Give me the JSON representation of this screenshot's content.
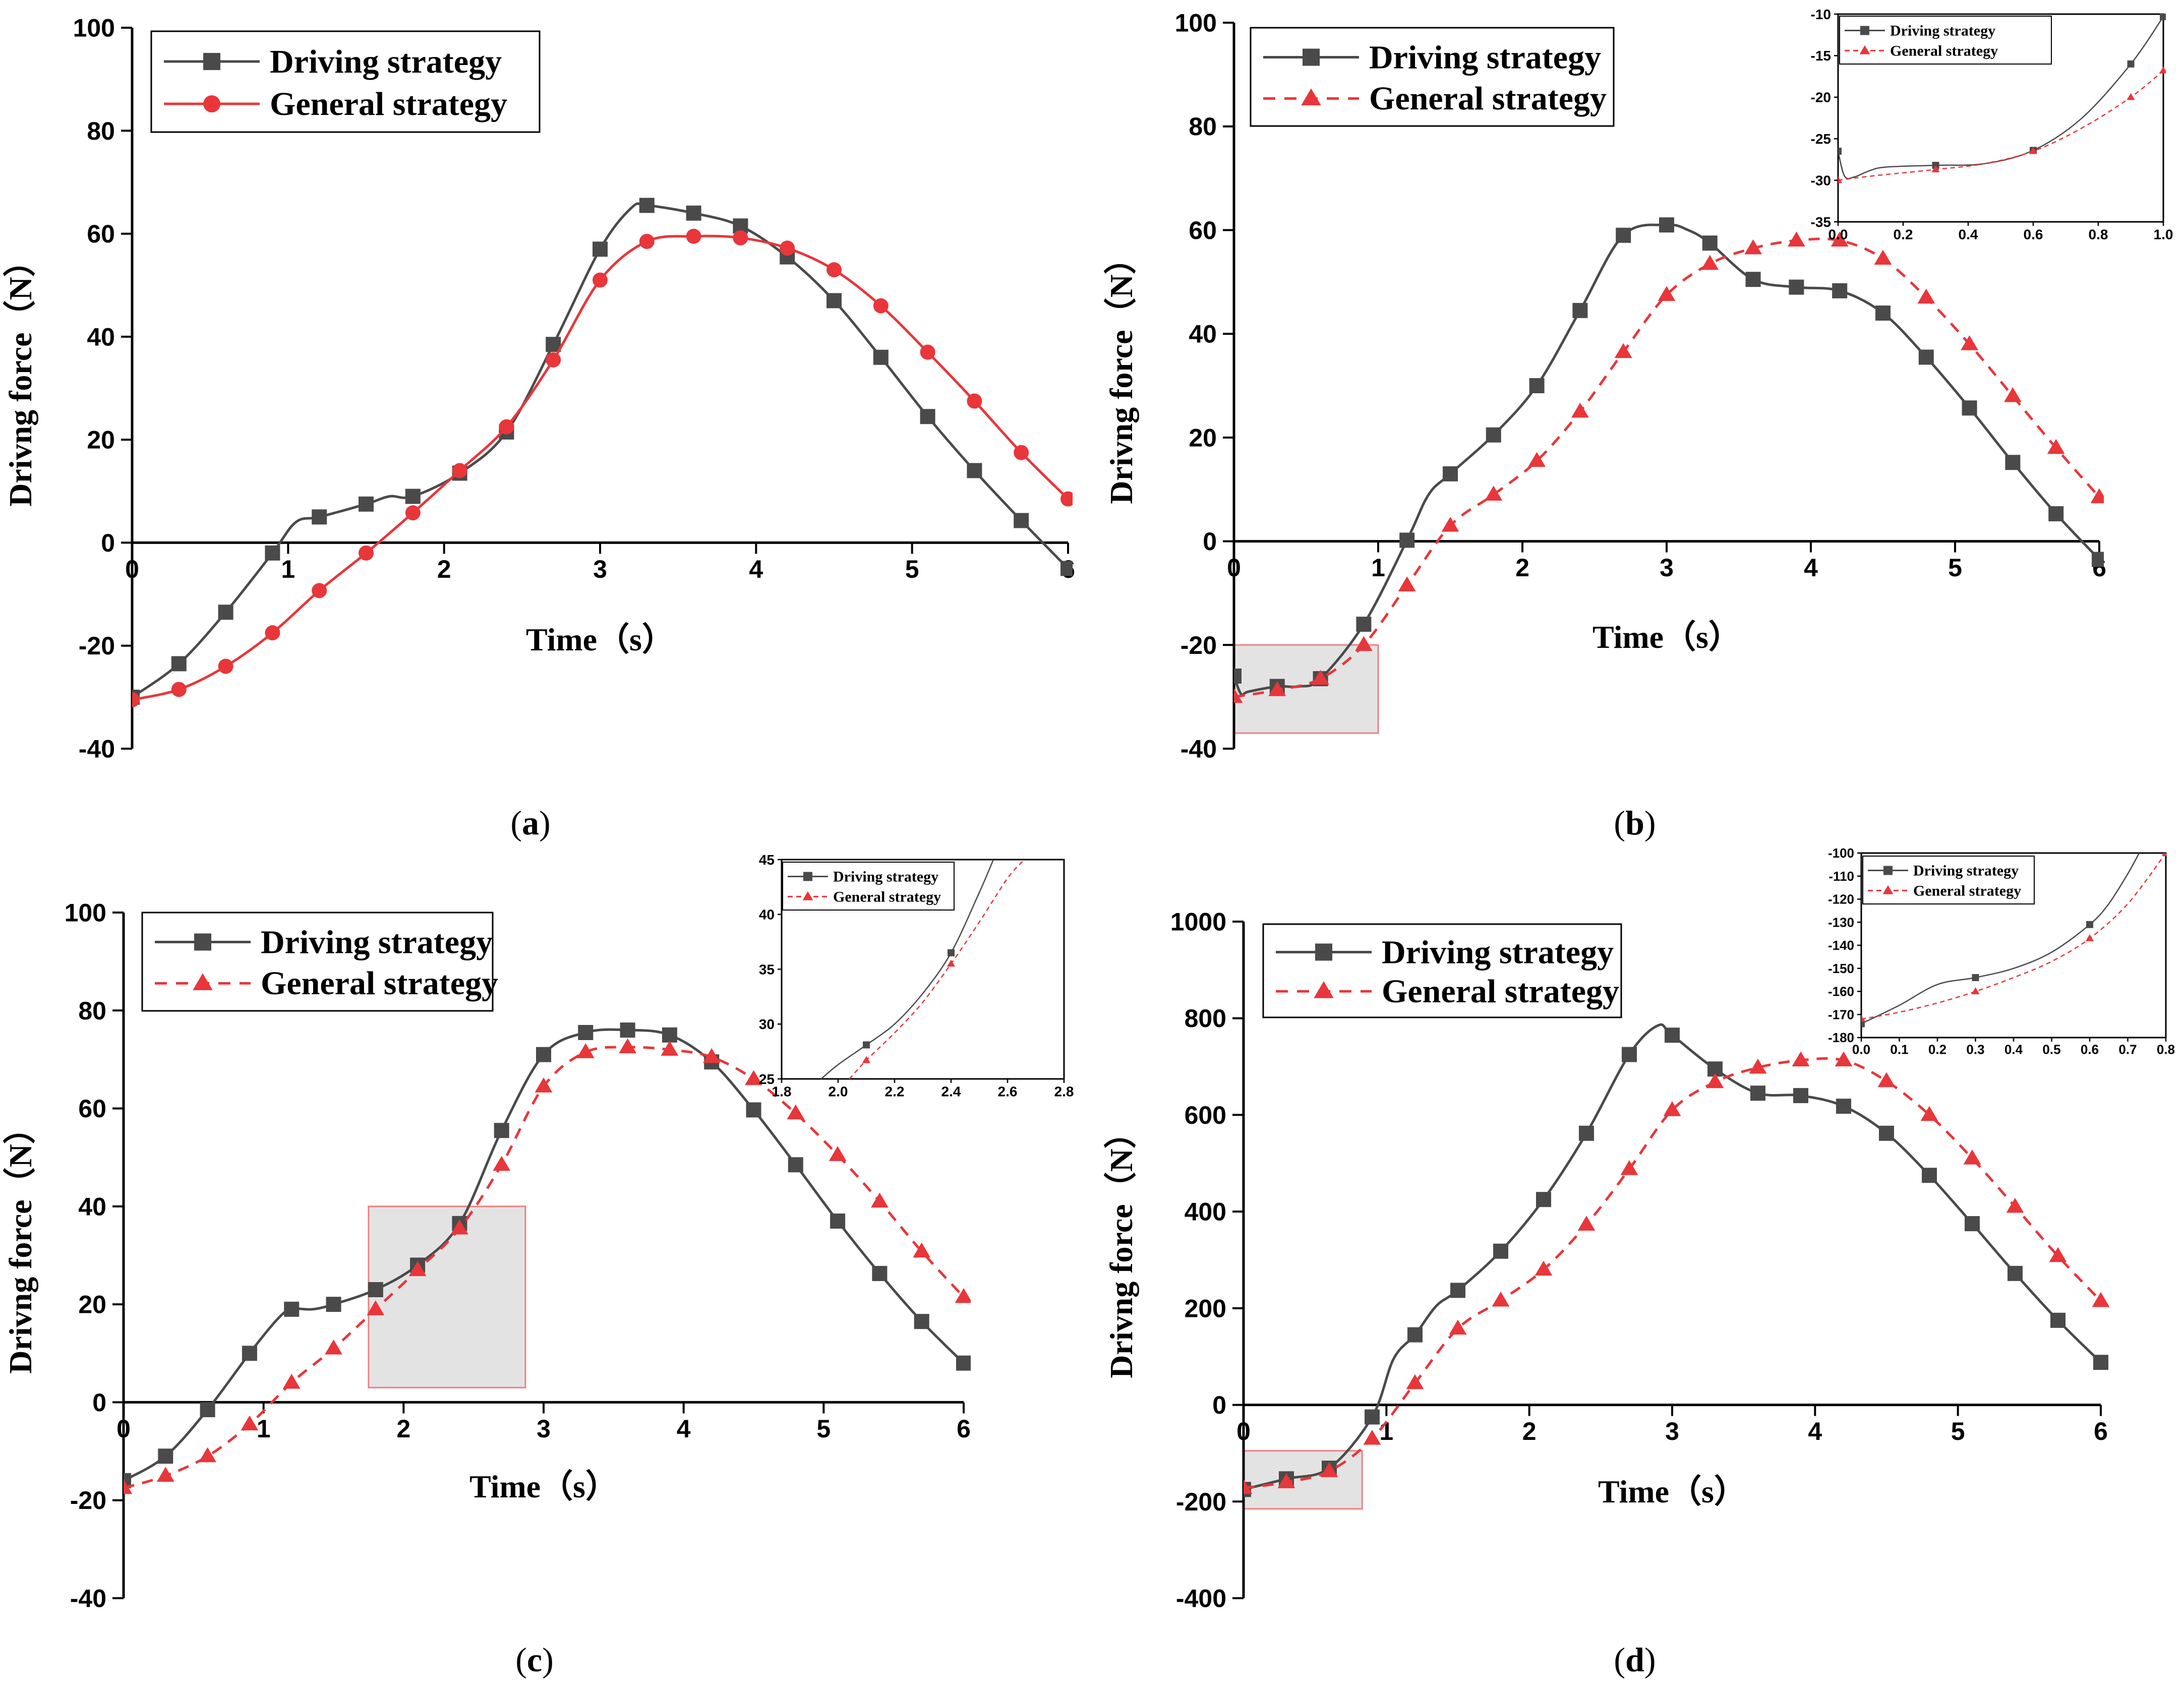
{
  "colors": {
    "driving": "#4a4a4a",
    "general": "#e8363a",
    "zoom_fill": "#e3e3e3",
    "zoom_edge": "#f08080"
  },
  "chart_data": [
    {
      "panel": "a",
      "type": "line",
      "caption": "(a)",
      "xlabel": "Time（s）",
      "ylabel": "Drivng force（N）",
      "xlim": [
        0,
        6
      ],
      "ylim": [
        -40,
        100
      ],
      "xticks": [
        0,
        1,
        2,
        3,
        4,
        5,
        6
      ],
      "yticks": [
        -40,
        -20,
        0,
        20,
        40,
        60,
        80,
        100
      ],
      "legend": "top-left",
      "general_style": "solid-circle",
      "series": [
        {
          "name": "Driving strategy",
          "marker": "square",
          "x": [
            0,
            0.3,
            0.6,
            0.9,
            1.05,
            1.2,
            1.5,
            1.65,
            1.8,
            2.1,
            2.4,
            2.7,
            3.0,
            3.2,
            3.3,
            3.6,
            3.9,
            4.2,
            4.5,
            4.8,
            5.1,
            5.4,
            5.7,
            6.0
          ],
          "y": [
            -30,
            -23.5,
            -13.5,
            -2,
            4,
            5,
            7.5,
            9,
            9,
            13.5,
            21.5,
            38.5,
            57,
            65,
            65.5,
            64,
            61.5,
            55.5,
            47,
            36,
            24.5,
            14,
            4.3,
            -5
          ],
          "markers_x": [
            0,
            0.3,
            0.6,
            0.9,
            1.2,
            1.5,
            1.8,
            2.1,
            2.4,
            2.7,
            3.0,
            3.3,
            3.6,
            3.9,
            4.2,
            4.5,
            4.8,
            5.1,
            5.4,
            5.7,
            6.0
          ]
        },
        {
          "name": "General strategy",
          "marker": "circle",
          "x": [
            0,
            0.3,
            0.6,
            0.9,
            1.2,
            1.5,
            1.8,
            2.1,
            2.4,
            2.7,
            3.0,
            3.3,
            3.6,
            3.9,
            4.2,
            4.5,
            4.8,
            5.1,
            5.4,
            5.7,
            6.0
          ],
          "y": [
            -30.5,
            -28.5,
            -24,
            -17.5,
            -9.3,
            -2,
            5.8,
            14,
            22.5,
            35.5,
            51,
            58.5,
            59.5,
            59.2,
            57.2,
            53,
            46,
            37,
            27.5,
            17.5,
            8.5
          ]
        }
      ]
    },
    {
      "panel": "b",
      "type": "line",
      "caption": "(b)",
      "xlabel": "Time（s）",
      "ylabel": "Drivng force（N）",
      "xlim": [
        0,
        6
      ],
      "ylim": [
        -40,
        100
      ],
      "xticks": [
        0,
        1,
        2,
        3,
        4,
        5,
        6
      ],
      "yticks": [
        -40,
        -20,
        0,
        20,
        40,
        60,
        80,
        100
      ],
      "legend": "top-left",
      "general_style": "dashed-triangle",
      "zoom_box": {
        "x": [
          0,
          1.0
        ],
        "y": [
          -37,
          -20
        ]
      },
      "series": [
        {
          "name": "Driving strategy",
          "marker": "square",
          "x": [
            0,
            0.05,
            0.1,
            0.3,
            0.45,
            0.6,
            0.9,
            1.2,
            1.35,
            1.5,
            1.8,
            2.1,
            2.4,
            2.7,
            3.0,
            3.15,
            3.3,
            3.6,
            3.9,
            4.2,
            4.5,
            4.8,
            5.1,
            5.4,
            5.7,
            6.0
          ],
          "y": [
            -26,
            -29.5,
            -29,
            -28,
            -28,
            -26.5,
            -16,
            0.2,
            9,
            13,
            20.5,
            30,
            44.5,
            59,
            61,
            60,
            57.5,
            50.5,
            49,
            48.3,
            44,
            35.5,
            25.7,
            15.2,
            5.3,
            -3.5
          ],
          "markers_x": [
            0,
            0.3,
            0.6,
            0.9,
            1.2,
            1.5,
            1.8,
            2.1,
            2.4,
            2.7,
            3.0,
            3.3,
            3.6,
            3.9,
            4.2,
            4.5,
            4.8,
            5.1,
            5.4,
            5.7,
            6.0
          ]
        },
        {
          "name": "General strategy",
          "marker": "triangle",
          "x": [
            0,
            0.3,
            0.6,
            0.9,
            1.2,
            1.5,
            1.8,
            2.1,
            2.4,
            2.7,
            3.0,
            3.3,
            3.6,
            3.9,
            4.2,
            4.5,
            4.8,
            5.1,
            5.4,
            5.7,
            6.0
          ],
          "y": [
            -30,
            -28.7,
            -26.5,
            -20,
            -8.5,
            3,
            9,
            15.5,
            25,
            36.5,
            47.5,
            53.5,
            56.5,
            58,
            58,
            54.5,
            47,
            38,
            28,
            18,
            8.5
          ]
        }
      ],
      "inset": {
        "xlim": [
          0,
          1.0
        ],
        "ylim": [
          -35,
          -10
        ],
        "xticks": [
          0.0,
          0.2,
          0.4,
          0.6,
          0.8,
          1.0
        ],
        "yticks": [
          -35,
          -30,
          -25,
          -20,
          -15,
          -10
        ],
        "series": [
          {
            "name": "Driving strategy",
            "marker": "square",
            "x": [
              0,
              0.02,
              0.05,
              0.1,
              0.15,
              0.3,
              0.45,
              0.6,
              0.75,
              0.9,
              1.0
            ],
            "y": [
              -26.5,
              -29.5,
              -29.6,
              -28.8,
              -28.4,
              -28.2,
              -28,
              -26.4,
              -22.5,
              -16,
              -10.3
            ],
            "markers_x": [
              0,
              0.3,
              0.6,
              0.9,
              1.0
            ]
          },
          {
            "name": "General strategy",
            "marker": "triangle",
            "x": [
              0,
              0.1,
              0.3,
              0.45,
              0.6,
              0.75,
              0.9,
              1.0
            ],
            "y": [
              -30,
              -29.5,
              -28.7,
              -28,
              -26.5,
              -23.7,
              -20,
              -16.8
            ],
            "markers_x": [
              0,
              0.3,
              0.6,
              0.9,
              1.0
            ]
          }
        ]
      }
    },
    {
      "panel": "c",
      "type": "line",
      "caption": "(c)",
      "xlabel": "Time（s）",
      "ylabel": "Drivng force（N）",
      "xlim": [
        0,
        6
      ],
      "ylim": [
        -40,
        100
      ],
      "xticks": [
        0,
        1,
        2,
        3,
        4,
        5,
        6
      ],
      "yticks": [
        -40,
        -20,
        0,
        20,
        40,
        60,
        80,
        100
      ],
      "legend": "top-left",
      "general_style": "dashed-triangle",
      "zoom_box": {
        "x": [
          1.75,
          2.87
        ],
        "y": [
          3,
          40
        ]
      },
      "series": [
        {
          "name": "Driving strategy",
          "marker": "square",
          "x": [
            0,
            0.3,
            0.6,
            0.9,
            1.1,
            1.2,
            1.35,
            1.5,
            1.8,
            2.1,
            2.4,
            2.7,
            3.0,
            3.3,
            3.6,
            3.9,
            4.2,
            4.5,
            4.8,
            5.1,
            5.4,
            5.7,
            6.0
          ],
          "y": [
            -16,
            -11,
            -1.5,
            10,
            17,
            19,
            19,
            20,
            23,
            28,
            36.5,
            55.5,
            71,
            75.5,
            76,
            75,
            69.5,
            59.7,
            48.5,
            37,
            26.3,
            16.5,
            8
          ],
          "markers_x": [
            0,
            0.3,
            0.6,
            0.9,
            1.2,
            1.5,
            1.8,
            2.1,
            2.4,
            2.7,
            3.0,
            3.3,
            3.6,
            3.9,
            4.2,
            4.5,
            4.8,
            5.1,
            5.4,
            5.7,
            6.0
          ]
        },
        {
          "name": "General strategy",
          "marker": "triangle",
          "x": [
            0,
            0.3,
            0.6,
            0.9,
            1.2,
            1.5,
            1.8,
            2.1,
            2.4,
            2.7,
            3.0,
            3.3,
            3.6,
            3.9,
            4.2,
            4.5,
            4.8,
            5.1,
            5.4,
            5.7,
            6.0
          ],
          "y": [
            -17.5,
            -15,
            -11,
            -4.5,
            4,
            11,
            19,
            27,
            35.5,
            48.5,
            64.5,
            71.5,
            72.5,
            72,
            70.5,
            66,
            59,
            50.5,
            41,
            30.8,
            21.5
          ]
        }
      ],
      "inset": {
        "xlim": [
          1.8,
          2.8
        ],
        "ylim": [
          25,
          45
        ],
        "xticks": [
          1.8,
          2.0,
          2.2,
          2.4,
          2.6,
          2.8
        ],
        "yticks": [
          25,
          30,
          35,
          40,
          45
        ],
        "series": [
          {
            "name": "Driving strategy",
            "marker": "square",
            "x": [
              1.94,
              2.0,
              2.1,
              2.2,
              2.3,
              2.4,
              2.5,
              2.55
            ],
            "y": [
              25,
              26.3,
              28.1,
              30,
              32.8,
              36.5,
              42,
              45
            ],
            "markers_x": [
              2.1,
              2.4
            ]
          },
          {
            "name": "General strategy",
            "marker": "triangle",
            "x": [
              2.04,
              2.1,
              2.2,
              2.3,
              2.4,
              2.5,
              2.6,
              2.66
            ],
            "y": [
              25,
              26.7,
              29.2,
              32,
              35.5,
              39.3,
              43.3,
              45
            ],
            "markers_x": [
              2.1,
              2.4
            ]
          }
        ]
      }
    },
    {
      "panel": "d",
      "type": "line",
      "caption": "(d)",
      "xlabel": "Time（s）",
      "ylabel": "Drivng force（N）",
      "xlim": [
        0,
        6
      ],
      "ylim": [
        -400,
        1000
      ],
      "xticks": [
        0,
        1,
        2,
        3,
        4,
        5,
        6
      ],
      "yticks": [
        -400,
        -200,
        0,
        200,
        400,
        600,
        800,
        1000
      ],
      "legend": "top-left",
      "general_style": "dashed-triangle",
      "zoom_box": {
        "x": [
          0,
          0.83
        ],
        "y": [
          -215,
          -95
        ]
      },
      "series": [
        {
          "name": "Driving strategy",
          "marker": "square",
          "x": [
            0,
            0.3,
            0.6,
            0.9,
            1.05,
            1.2,
            1.35,
            1.5,
            1.8,
            2.1,
            2.4,
            2.7,
            2.9,
            3.0,
            3.3,
            3.6,
            3.9,
            4.2,
            4.5,
            4.8,
            5.1,
            5.4,
            5.7,
            6.0
          ],
          "y": [
            -175,
            -153,
            -131,
            -25,
            95,
            145,
            205,
            237,
            318,
            425,
            562,
            725,
            785,
            765,
            695,
            645,
            640,
            618,
            562,
            475,
            375,
            272,
            175,
            88
          ],
          "markers_x": [
            0,
            0.3,
            0.6,
            0.9,
            1.2,
            1.5,
            1.8,
            2.1,
            2.4,
            2.7,
            3.0,
            3.3,
            3.6,
            3.9,
            4.2,
            4.5,
            4.8,
            5.1,
            5.4,
            5.7,
            6.0
          ]
        },
        {
          "name": "General strategy",
          "marker": "triangle",
          "x": [
            0,
            0.3,
            0.6,
            0.9,
            1.2,
            1.5,
            1.8,
            2.1,
            2.4,
            2.7,
            3.0,
            3.3,
            3.6,
            3.9,
            4.2,
            4.5,
            4.8,
            5.1,
            5.4,
            5.7,
            6.0
          ],
          "y": [
            -172,
            -160,
            -137,
            -70,
            45,
            158,
            216,
            280,
            373,
            488,
            610,
            668,
            698,
            713,
            713,
            670,
            600,
            510,
            410,
            308,
            215
          ]
        }
      ],
      "inset": {
        "xlim": [
          0,
          0.8
        ],
        "ylim": [
          -180,
          -100
        ],
        "xticks": [
          0.0,
          0.1,
          0.2,
          0.3,
          0.4,
          0.5,
          0.6,
          0.7,
          0.8
        ],
        "yticks": [
          -180,
          -170,
          -160,
          -150,
          -140,
          -130,
          -120,
          -110,
          -100
        ],
        "series": [
          {
            "name": "Driving strategy",
            "marker": "square",
            "x": [
              0,
              0.1,
              0.2,
              0.3,
              0.4,
              0.5,
              0.6,
              0.65,
              0.7,
              0.73
            ],
            "y": [
              -174,
              -166,
              -157,
              -154,
              -150,
              -143,
              -131,
              -122,
              -109,
              -100
            ],
            "markers_x": [
              0,
              0.3,
              0.6
            ]
          },
          {
            "name": "General strategy",
            "marker": "triangle",
            "x": [
              0,
              0.1,
              0.2,
              0.3,
              0.4,
              0.5,
              0.6,
              0.7,
              0.8
            ],
            "y": [
              -172,
              -169,
              -165,
              -160,
              -154,
              -147,
              -137,
              -122,
              -100
            ],
            "markers_x": [
              0,
              0.3,
              0.6,
              0.8
            ]
          }
        ]
      }
    }
  ]
}
